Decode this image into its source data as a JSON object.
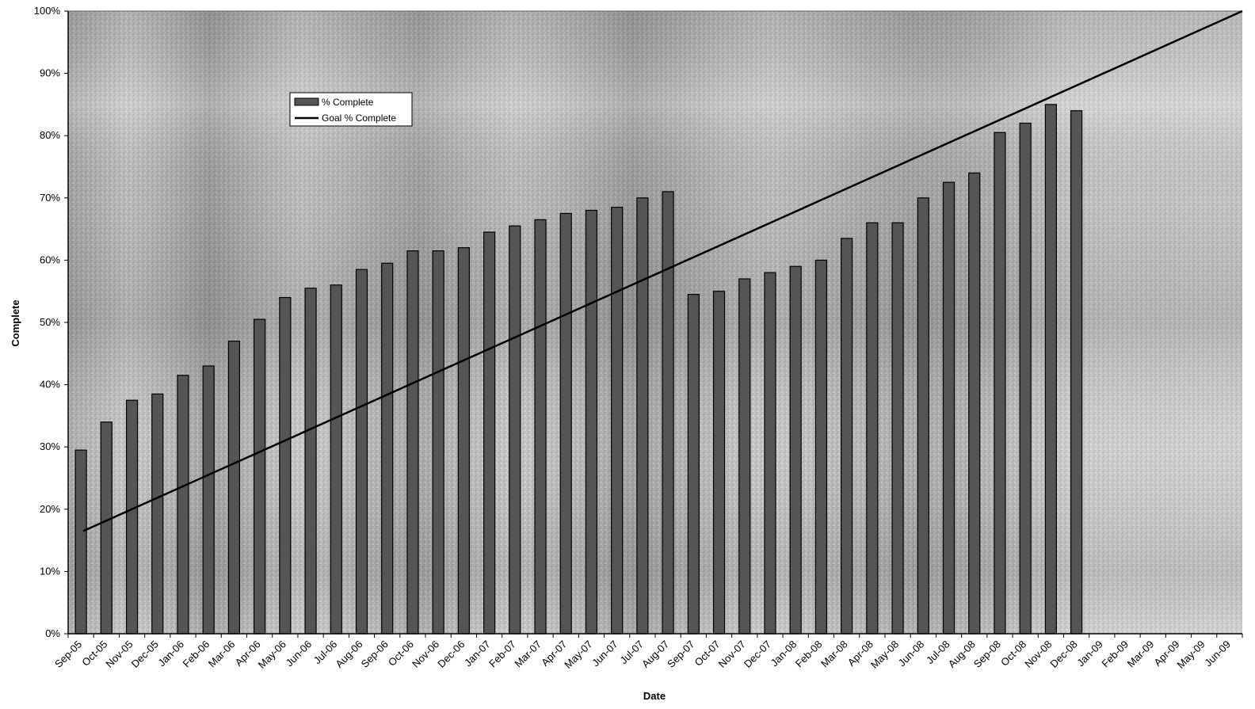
{
  "chart_data": {
    "type": "bar",
    "title": "",
    "xlabel": "Date",
    "ylabel": "Complete",
    "ylim": [
      0,
      100
    ],
    "yticks": [
      "0%",
      "10%",
      "20%",
      "30%",
      "40%",
      "50%",
      "60%",
      "70%",
      "80%",
      "90%",
      "100%"
    ],
    "grid": false,
    "legend_position": "upper-left",
    "categories": [
      "Sep-05",
      "Oct-05",
      "Nov-05",
      "Dec-05",
      "Jan-06",
      "Feb-06",
      "Mar-06",
      "Apr-06",
      "May-06",
      "Jun-06",
      "Jul-06",
      "Aug-06",
      "Sep-06",
      "Oct-06",
      "Nov-06",
      "Dec-06",
      "Jan-07",
      "Feb-07",
      "Mar-07",
      "Apr-07",
      "May-07",
      "Jun-07",
      "Jul-07",
      "Aug-07",
      "Sep-07",
      "Oct-07",
      "Nov-07",
      "Dec-07",
      "Jan-08",
      "Feb-08",
      "Mar-08",
      "Apr-08",
      "May-08",
      "Jun-08",
      "Jul-08",
      "Aug-08",
      "Sep-08",
      "Oct-08",
      "Nov-08",
      "Dec-08",
      "Jan-09",
      "Feb-09",
      "Mar-09",
      "Apr-09",
      "May-09",
      "Jun-09"
    ],
    "series": [
      {
        "name": "% Complete",
        "kind": "bar",
        "color": "#555555",
        "values": [
          29.5,
          34,
          37.5,
          38.5,
          41.5,
          43,
          47,
          50.5,
          54,
          55.5,
          56,
          58.5,
          59.5,
          61.5,
          61.5,
          62,
          64.5,
          65.5,
          66.5,
          67.5,
          68,
          68.5,
          70,
          71,
          54.5,
          55,
          57,
          58,
          59,
          60,
          63.5,
          66,
          66,
          70,
          72.5,
          74,
          80.5,
          82,
          85,
          84,
          null,
          null,
          null,
          null,
          null,
          null
        ]
      },
      {
        "name": "Goal % Complete",
        "kind": "line",
        "color": "#000000",
        "start": {
          "x": "Sep-05",
          "y": 16.5
        },
        "end": {
          "x": "Jun-09",
          "y": 100
        }
      }
    ]
  }
}
